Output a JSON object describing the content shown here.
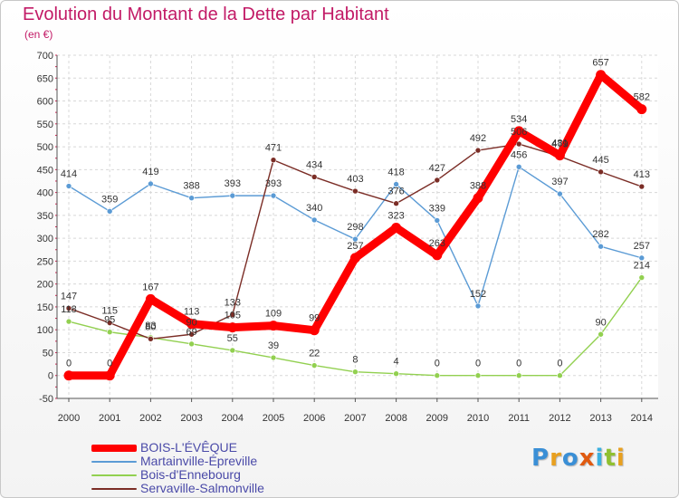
{
  "header": {
    "title": "Evolution du Montant de la Dette par Habitant",
    "subtitle": "(en €)"
  },
  "brand": {
    "logo_text": "Proxiti",
    "logo_colors": [
      "#3a8fd6",
      "#e8a020",
      "#3a8fd6",
      "#e05a10",
      "#3ab0e0",
      "#90c030",
      "#e8a020"
    ]
  },
  "chart_data": {
    "type": "line",
    "title": "Evolution du Montant de la Dette par Habitant",
    "subtitle": "(en €)",
    "xlabel": "",
    "ylabel": "",
    "categories": [
      "2000",
      "2001",
      "2002",
      "2003",
      "2004",
      "2005",
      "2006",
      "2007",
      "2008",
      "2009",
      "2010",
      "2011",
      "2012",
      "2013",
      "2014"
    ],
    "ylim": [
      -50,
      700
    ],
    "yticks": [
      -50,
      0,
      50,
      100,
      150,
      200,
      250,
      300,
      350,
      400,
      450,
      500,
      550,
      600,
      650,
      700
    ],
    "grid": true,
    "legend_position": "bottom-left",
    "series": [
      {
        "name": "Martainville-Épreville",
        "color": "#5b9bd5",
        "values": [
          414,
          359,
          419,
          388,
          393,
          393,
          340,
          298,
          418,
          339,
          152,
          456,
          397,
          282,
          257
        ],
        "labels": [
          "414",
          "359",
          "419",
          "388",
          "393",
          "393",
          "340",
          "298",
          "418",
          "339",
          "152",
          "456",
          "397",
          "282",
          "257"
        ]
      },
      {
        "name": "Bois-d'Ennebourg",
        "color": "#92d050",
        "values": [
          118,
          95,
          83,
          69,
          55,
          39,
          22,
          8,
          4,
          0,
          0,
          0,
          0,
          90,
          214
        ],
        "labels": [
          "118",
          "95",
          "83",
          "69",
          "55",
          "39",
          "22",
          "8",
          "4",
          "0",
          "0",
          "0",
          "0",
          "90",
          "214"
        ]
      },
      {
        "name": "Servaville-Salmonville",
        "color": "#7b2d26",
        "values": [
          147,
          115,
          80,
          90,
          133,
          471,
          434,
          403,
          376,
          427,
          492,
          506,
          479,
          445,
          413
        ],
        "labels": [
          "147",
          "115",
          "80",
          "90",
          "133",
          "471",
          "434",
          "403",
          "376",
          "427",
          "492",
          "506",
          "479",
          "445",
          "413"
        ]
      },
      {
        "name": "BOIS-L'ÉVÊQUE",
        "color": "#ff0000",
        "values": [
          0,
          0,
          167,
          113,
          105,
          109,
          99,
          257,
          323,
          263,
          388,
          534,
          481,
          657,
          582
        ],
        "labels": [
          "0",
          "0",
          "167",
          "113",
          "105",
          "109",
          "99",
          "257",
          "323",
          "263",
          "388",
          "534",
          "481",
          "657",
          "582"
        ]
      }
    ],
    "legend": [
      {
        "name": "BOIS-L'ÉVÊQUE",
        "color": "#ff0000"
      },
      {
        "name": "Martainville-Épreville",
        "color": "#5b9bd5"
      },
      {
        "name": "Bois-d'Ennebourg",
        "color": "#92d050"
      },
      {
        "name": "Servaville-Salmonville",
        "color": "#7b2d26"
      }
    ]
  }
}
